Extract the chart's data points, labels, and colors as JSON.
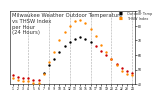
{
  "title": "Milwaukee Weather Outdoor Temperature\nvs THSW Index\nper Hour\n(24 Hours)",
  "hours": [
    1,
    2,
    3,
    4,
    5,
    6,
    7,
    8,
    9,
    10,
    11,
    12,
    13,
    14,
    15,
    16,
    17,
    18,
    19,
    20,
    21,
    22,
    23,
    24
  ],
  "temp": [
    46,
    45,
    44,
    44,
    43,
    43,
    48,
    53,
    57,
    62,
    66,
    69,
    71,
    72,
    71,
    69,
    66,
    63,
    60,
    57,
    54,
    51,
    49,
    48
  ],
  "thsw": [
    44,
    43,
    42,
    42,
    41,
    41,
    47,
    55,
    62,
    70,
    76,
    80,
    83,
    84,
    82,
    78,
    73,
    67,
    62,
    57,
    53,
    49,
    47,
    46
  ],
  "temp_colors": [
    "#cc0000",
    "#cc0000",
    "#cc0000",
    "#cc0000",
    "#cc0000",
    "#cc0000",
    "#000000",
    "#000000",
    "#000000",
    "#000000",
    "#000000",
    "#000000",
    "#000000",
    "#000000",
    "#000000",
    "#000000",
    "#cc0000",
    "#cc0000",
    "#cc0000",
    "#cc0000",
    "#cc0000",
    "#cc0000",
    "#cc0000",
    "#cc0000"
  ],
  "thsw_color": "#ff8800",
  "ylim": [
    40,
    90
  ],
  "yticks": [
    40,
    50,
    60,
    70,
    80,
    90
  ],
  "ytick_labels": [
    "40",
    "50",
    "60",
    "70",
    "80",
    "90"
  ],
  "grid_hours": [
    4,
    8,
    12,
    16,
    20,
    24
  ],
  "background_color": "#ffffff",
  "title_fontsize": 3.8,
  "dot_size": 3,
  "legend_temp": "Outdoor Temp",
  "legend_thsw": "THSW Index"
}
